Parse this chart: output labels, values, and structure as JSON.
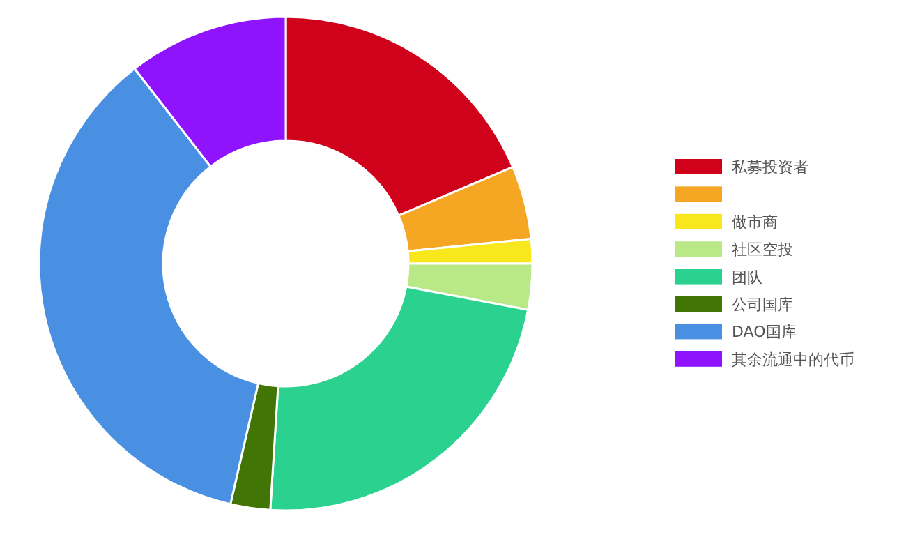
{
  "chart_data": {
    "type": "donut",
    "categories": [
      "私募投资者",
      null,
      "做市商",
      "社区空投",
      "团队",
      "公司国库",
      "DAO国库",
      "其余流通中的代币"
    ],
    "values": [
      18.6,
      4.8,
      1.6,
      3.0,
      23.0,
      2.6,
      35.9,
      10.5
    ],
    "colors": [
      "#d0021b",
      "#f5a623",
      "#f8e71c",
      "#b8e986",
      "#2bd18f",
      "#417505",
      "#4a90e2",
      "#9013fe"
    ],
    "legend": "right"
  }
}
